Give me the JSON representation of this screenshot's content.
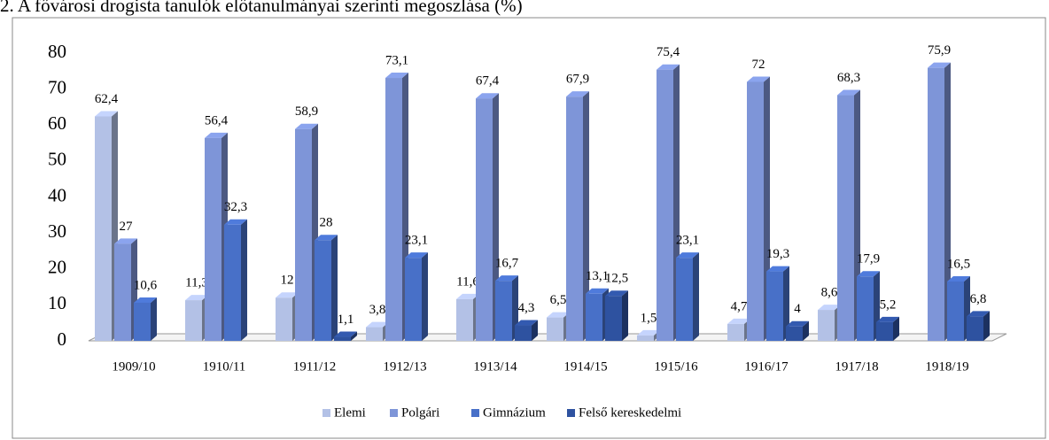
{
  "chart_data": {
    "type": "bar3d",
    "title": "2. A fővárosi drogista tanulók előtanulmányai szerinti megoszlása (%)",
    "categories": [
      "1909/10",
      "1910/11",
      "1911/12",
      "1912/13",
      "1913/14",
      "1914/15",
      "1915/16",
      "1916/17",
      "1917/18",
      "1918/19"
    ],
    "series": [
      {
        "name": "Elemi",
        "color": "#b3c1e6",
        "values": [
          62.4,
          11.3,
          12,
          3.8,
          11.6,
          6.5,
          1.5,
          4.7,
          8.6,
          null
        ],
        "value_labels": [
          "62,4",
          "11,3",
          "12",
          "3,8",
          "11,6",
          "6,5",
          "1,5",
          "4,7",
          "8,6",
          null
        ]
      },
      {
        "name": "Polgári",
        "color": "#7e95d8",
        "values": [
          27,
          56.4,
          58.9,
          73.1,
          67.4,
          67.9,
          75.4,
          72,
          68.3,
          75.9
        ],
        "value_labels": [
          "27",
          "56,4",
          "58,9",
          "73,1",
          "67,4",
          "67,9",
          "75,4",
          "72",
          "68,3",
          "75,9"
        ]
      },
      {
        "name": "Gimnázium",
        "color": "#4870c8",
        "values": [
          10.6,
          32.3,
          28,
          23.1,
          16.7,
          13.1,
          23.1,
          19.3,
          17.9,
          16.5
        ],
        "value_labels": [
          "10,6",
          "32,3",
          "28",
          "23,1",
          "16,7",
          "13,1",
          "23,1",
          "19,3",
          "17,9",
          "16,5"
        ]
      },
      {
        "name": "Felső kereskedelmi",
        "color": "#2e52a0",
        "values": [
          null,
          null,
          1.1,
          null,
          4.3,
          12.5,
          null,
          4,
          5.2,
          6.8
        ],
        "value_labels": [
          null,
          null,
          "1,1",
          null,
          "4,3",
          "12,5",
          null,
          "4",
          "5,2",
          "6,8"
        ]
      }
    ],
    "ylim": [
      0,
      80
    ],
    "yticks": [
      0,
      10,
      20,
      30,
      40,
      50,
      60,
      70,
      80
    ],
    "legend": "bottom"
  }
}
